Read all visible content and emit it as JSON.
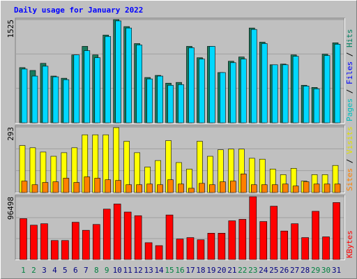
{
  "title": "Daily usage for January 2022",
  "chart_data": [
    {
      "type": "bar",
      "ylim": [
        0,
        1525
      ],
      "yticks": [
        1525
      ],
      "legend_separator": " / ",
      "legend": [
        {
          "name": "Pages",
          "color": "#00c0c0"
        },
        {
          "name": "Files",
          "color": "#0000ff"
        },
        {
          "name": "Hits",
          "color": "#008060"
        }
      ],
      "series": [
        {
          "color": "#1a7a5c",
          "values": [
            815,
            773,
            878,
            690,
            658,
            1003,
            1129,
            1003,
            1296,
            1525,
            1421,
            1170,
            669,
            700,
            585,
            596,
            1129,
            961,
            1129,
            742,
            909,
            972,
            1400,
            1191,
            857,
            867,
            1003,
            554,
            522,
            1014,
            1181
          ]
        },
        {
          "color": "#00d8ff",
          "values": [
            794,
            690,
            836,
            679,
            637,
            1003,
            1066,
            961,
            1275,
            1505,
            1400,
            1150,
            648,
            690,
            554,
            564,
            1108,
            941,
            1129,
            742,
            888,
            941,
            1379,
            1170,
            857,
            857,
            982,
            543,
            502,
            993,
            1160
          ]
        }
      ]
    },
    {
      "type": "bar",
      "ylim": [
        0,
        293
      ],
      "yticks": [
        293
      ],
      "legend_separator": " / ",
      "legend": [
        {
          "name": "Sites",
          "color": "#ff8000"
        },
        {
          "name": "Visits",
          "color": "#e0e000"
        }
      ],
      "series": [
        {
          "color": "#ffff00",
          "values": [
            210,
            200,
            181,
            162,
            178,
            200,
            258,
            258,
            258,
            290,
            229,
            178,
            114,
            143,
            232,
            134,
            105,
            229,
            162,
            191,
            194,
            194,
            153,
            149,
            105,
            80,
            108,
            51,
            80,
            80,
            121
          ]
        },
        {
          "color": "#ff8000",
          "values": [
            51,
            35,
            45,
            48,
            64,
            45,
            70,
            64,
            57,
            54,
            35,
            35,
            38,
            35,
            57,
            38,
            19,
            41,
            35,
            48,
            51,
            83,
            35,
            35,
            35,
            38,
            29,
            48,
            38,
            38,
            38
          ]
        }
      ]
    },
    {
      "type": "bar",
      "ylim": [
        0,
        96498
      ],
      "yticks": [
        96498
      ],
      "legend": [
        {
          "name": "KBytes",
          "color": "#ff0000"
        }
      ],
      "categories": [
        "1",
        "2",
        "3",
        "4",
        "5",
        "6",
        "7",
        "8",
        "9",
        "10",
        "11",
        "12",
        "13",
        "14",
        "15",
        "16",
        "17",
        "18",
        "19",
        "20",
        "21",
        "22",
        "23",
        "24",
        "25",
        "26",
        "27",
        "28",
        "29",
        "30",
        "31"
      ],
      "category_colors": [
        "#008040",
        "#008040",
        "#000080",
        "#000080",
        "#000080",
        "#000080",
        "#000080",
        "#008040",
        "#008040",
        "#000080",
        "#000080",
        "#000080",
        "#000080",
        "#000080",
        "#008040",
        "#008040",
        "#000080",
        "#000080",
        "#000080",
        "#000080",
        "#000080",
        "#008040",
        "#008040",
        "#000080",
        "#000080",
        "#000080",
        "#000080",
        "#000080",
        "#008040",
        "#008040",
        "#000080"
      ],
      "series": [
        {
          "color": "#ff0000",
          "values": [
            62832,
            52734,
            54978,
            29172,
            29172,
            57222,
            44880,
            53856,
            77418,
            85272,
            72930,
            67320,
            25806,
            21318,
            68442,
            31416,
            33660,
            30294,
            40392,
            40392,
            59466,
            61710,
            96498,
            58344,
            81906,
            43758,
            54978,
            33660,
            74052,
            34782,
            87516
          ]
        }
      ]
    }
  ]
}
